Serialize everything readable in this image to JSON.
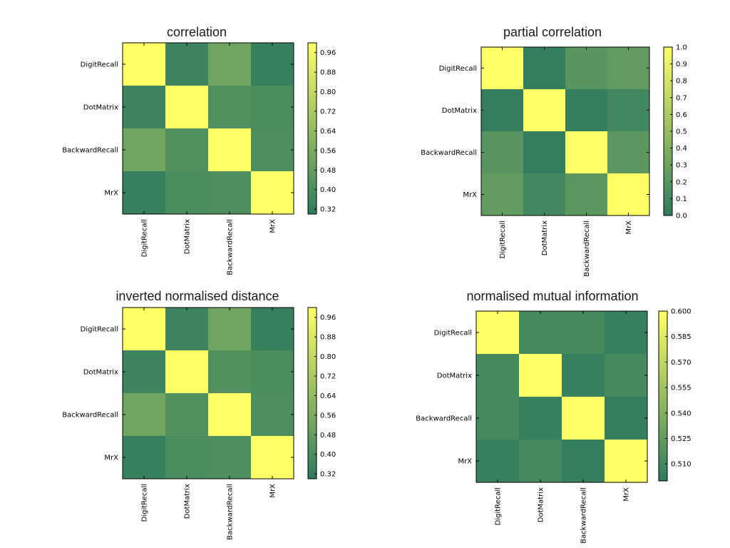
{
  "chart_data": [
    {
      "type": "heatmap",
      "title": "correlation",
      "row_labels": [
        "DigitRecall",
        "DotMatrix",
        "BackwardRecall",
        "MrX"
      ],
      "col_labels": [
        "DigitRecall",
        "DotMatrix",
        "BackwardRecall",
        "MrX"
      ],
      "values": [
        [
          1.0,
          0.35,
          0.52,
          0.33
        ],
        [
          0.35,
          1.0,
          0.42,
          0.4
        ],
        [
          0.52,
          0.42,
          1.0,
          0.41
        ],
        [
          0.33,
          0.4,
          0.41,
          1.0
        ]
      ],
      "vmin": 0.3,
      "vmax": 1.0,
      "colorbar_ticks": [
        "0.32",
        "0.40",
        "0.48",
        "0.56",
        "0.64",
        "0.72",
        "0.80",
        "0.88",
        "0.96"
      ],
      "colorbar_tick_values": [
        0.32,
        0.4,
        0.48,
        0.56,
        0.64,
        0.72,
        0.8,
        0.88,
        0.96
      ]
    },
    {
      "type": "heatmap",
      "title": "partial correlation",
      "row_labels": [
        "DigitRecall",
        "DotMatrix",
        "BackwardRecall",
        "MrX"
      ],
      "col_labels": [
        "DigitRecall",
        "DotMatrix",
        "BackwardRecall",
        "MrX"
      ],
      "values": [
        [
          1.0,
          0.03,
          0.2,
          0.25
        ],
        [
          0.03,
          1.0,
          0.03,
          0.1
        ],
        [
          0.2,
          0.03,
          1.0,
          0.22
        ],
        [
          0.25,
          0.1,
          0.22,
          1.0
        ]
      ],
      "vmin": 0.0,
      "vmax": 1.0,
      "colorbar_ticks": [
        "0.0",
        "0.1",
        "0.2",
        "0.3",
        "0.4",
        "0.5",
        "0.6",
        "0.7",
        "0.8",
        "0.9",
        "1.0"
      ],
      "colorbar_tick_values": [
        0.0,
        0.1,
        0.2,
        0.3,
        0.4,
        0.5,
        0.6,
        0.7,
        0.8,
        0.9,
        1.0
      ]
    },
    {
      "type": "heatmap",
      "title": "inverted normalised distance",
      "row_labels": [
        "DigitRecall",
        "DotMatrix",
        "BackwardRecall",
        "MrX"
      ],
      "col_labels": [
        "DigitRecall",
        "DotMatrix",
        "BackwardRecall",
        "MrX"
      ],
      "values": [
        [
          1.0,
          0.35,
          0.52,
          0.33
        ],
        [
          0.35,
          1.0,
          0.42,
          0.4
        ],
        [
          0.52,
          0.42,
          1.0,
          0.41
        ],
        [
          0.33,
          0.4,
          0.41,
          1.0
        ]
      ],
      "vmin": 0.3,
      "vmax": 1.0,
      "colorbar_ticks": [
        "0.32",
        "0.40",
        "0.48",
        "0.56",
        "0.64",
        "0.72",
        "0.80",
        "0.88",
        "0.96"
      ],
      "colorbar_tick_values": [
        0.32,
        0.4,
        0.48,
        0.56,
        0.64,
        0.72,
        0.8,
        0.88,
        0.96
      ]
    },
    {
      "type": "heatmap",
      "title": "normalised mutual information",
      "row_labels": [
        "DigitRecall",
        "DotMatrix",
        "BackwardRecall",
        "MrX"
      ],
      "col_labels": [
        "DigitRecall",
        "DotMatrix",
        "BackwardRecall",
        "MrX"
      ],
      "values": [
        [
          0.6,
          0.512,
          0.512,
          0.505
        ],
        [
          0.512,
          0.6,
          0.505,
          0.512
        ],
        [
          0.512,
          0.505,
          0.6,
          0.504
        ],
        [
          0.505,
          0.512,
          0.504,
          0.6
        ]
      ],
      "vmin": 0.5,
      "vmax": 0.6,
      "colorbar_ticks": [
        "0.510",
        "0.525",
        "0.540",
        "0.555",
        "0.570",
        "0.585",
        "0.600"
      ],
      "colorbar_tick_values": [
        0.51,
        0.525,
        0.54,
        0.555,
        0.57,
        0.585,
        0.6
      ]
    }
  ],
  "colormap": {
    "low": "#2e7a5e",
    "high": "#ffff66"
  }
}
